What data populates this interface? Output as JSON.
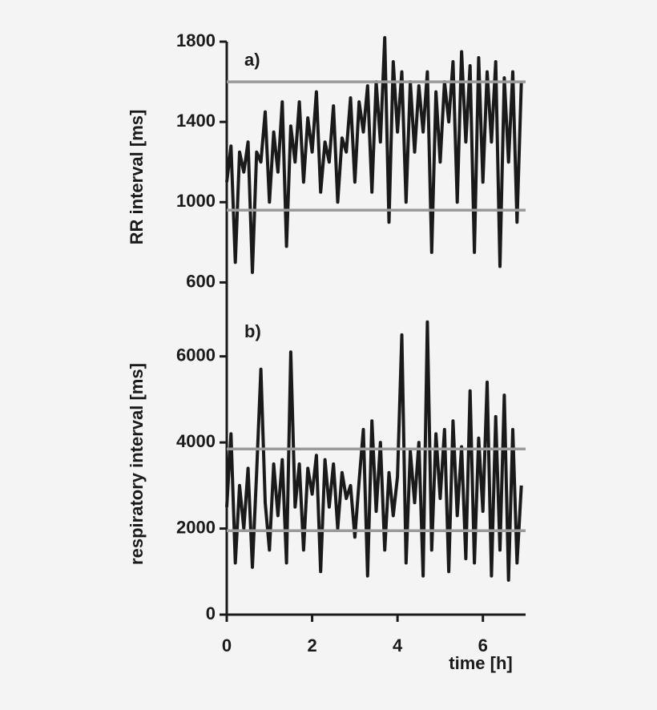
{
  "chart_data": [
    {
      "type": "line",
      "panel_label": "a)",
      "ylabel": "RR interval [ms]",
      "ylim": [
        450,
        1800
      ],
      "yticks": [
        600,
        1000,
        1400,
        1800
      ],
      "xlim": [
        0,
        7
      ],
      "xticks": [
        0,
        2,
        4,
        6
      ],
      "reference_lines": [
        1600,
        960
      ],
      "reference_color": "#9a9a9a",
      "x": [
        0,
        0.1,
        0.2,
        0.3,
        0.4,
        0.5,
        0.6,
        0.7,
        0.8,
        0.9,
        1,
        1.1,
        1.2,
        1.3,
        1.4,
        1.5,
        1.6,
        1.7,
        1.8,
        1.9,
        2,
        2.1,
        2.2,
        2.3,
        2.4,
        2.5,
        2.6,
        2.7,
        2.8,
        2.9,
        3,
        3.1,
        3.2,
        3.3,
        3.4,
        3.5,
        3.6,
        3.7,
        3.8,
        3.9,
        4,
        4.1,
        4.2,
        4.3,
        4.4,
        4.5,
        4.6,
        4.7,
        4.8,
        4.9,
        5,
        5.1,
        5.2,
        5.3,
        5.4,
        5.5,
        5.6,
        5.7,
        5.8,
        5.9,
        6,
        6.1,
        6.2,
        6.3,
        6.4,
        6.5,
        6.6,
        6.7,
        6.8,
        6.9
      ],
      "series": [
        {
          "color": "#1a1a1a",
          "values": [
            1100,
            1280,
            700,
            1250,
            1150,
            1300,
            650,
            1250,
            1200,
            1450,
            1000,
            1350,
            1150,
            1500,
            780,
            1380,
            1200,
            1500,
            1100,
            1420,
            1250,
            1550,
            1050,
            1300,
            1200,
            1480,
            1000,
            1320,
            1250,
            1520,
            1100,
            1500,
            1350,
            1580,
            1050,
            1600,
            1300,
            1820,
            900,
            1700,
            1350,
            1650,
            1000,
            1600,
            1250,
            1580,
            1350,
            1650,
            750,
            1550,
            1200,
            1600,
            1400,
            1700,
            1000,
            1750,
            1300,
            1680,
            750,
            1720,
            1100,
            1650,
            1300,
            1700,
            680,
            1620,
            1200,
            1650,
            900,
            1600
          ]
        }
      ]
    },
    {
      "type": "line",
      "panel_label": "b)",
      "ylabel": "respiratory interval [ms]",
      "xlabel": "time [h]",
      "ylim": [
        0,
        7000
      ],
      "yticks": [
        0,
        2000,
        4000,
        6000
      ],
      "xlim": [
        0,
        7
      ],
      "xticks": [
        0,
        2,
        4,
        6
      ],
      "reference_lines": [
        3850,
        1950
      ],
      "reference_color": "#9a9a9a",
      "x": [
        0,
        0.1,
        0.2,
        0.3,
        0.4,
        0.5,
        0.6,
        0.7,
        0.8,
        0.9,
        1,
        1.1,
        1.2,
        1.3,
        1.4,
        1.5,
        1.6,
        1.7,
        1.8,
        1.9,
        2,
        2.1,
        2.2,
        2.3,
        2.4,
        2.5,
        2.6,
        2.7,
        2.8,
        2.9,
        3,
        3.1,
        3.2,
        3.3,
        3.4,
        3.5,
        3.6,
        3.7,
        3.8,
        3.9,
        4,
        4.1,
        4.2,
        4.3,
        4.4,
        4.5,
        4.6,
        4.7,
        4.8,
        4.9,
        5,
        5.1,
        5.2,
        5.3,
        5.4,
        5.5,
        5.6,
        5.7,
        5.8,
        5.9,
        6,
        6.1,
        6.2,
        6.3,
        6.4,
        6.5,
        6.6,
        6.7,
        6.8,
        6.9
      ],
      "series": [
        {
          "color": "#1a1a1a",
          "values": [
            2500,
            4200,
            1200,
            3000,
            2000,
            3400,
            1100,
            3300,
            5700,
            2600,
            1500,
            3500,
            2300,
            3600,
            1200,
            6100,
            2500,
            3500,
            1500,
            3400,
            2800,
            3700,
            1000,
            3600,
            2500,
            3500,
            2000,
            3300,
            2700,
            3000,
            1800,
            3100,
            4300,
            900,
            4500,
            2400,
            4000,
            1500,
            3300,
            2300,
            3200,
            6500,
            1200,
            3800,
            2600,
            4000,
            900,
            6800,
            1500,
            4200,
            2700,
            4300,
            1000,
            4500,
            2300,
            3900,
            1300,
            5200,
            1200,
            4100,
            2400,
            5400,
            900,
            4600,
            1500,
            5100,
            800,
            4300,
            1200,
            3000
          ]
        }
      ]
    }
  ]
}
